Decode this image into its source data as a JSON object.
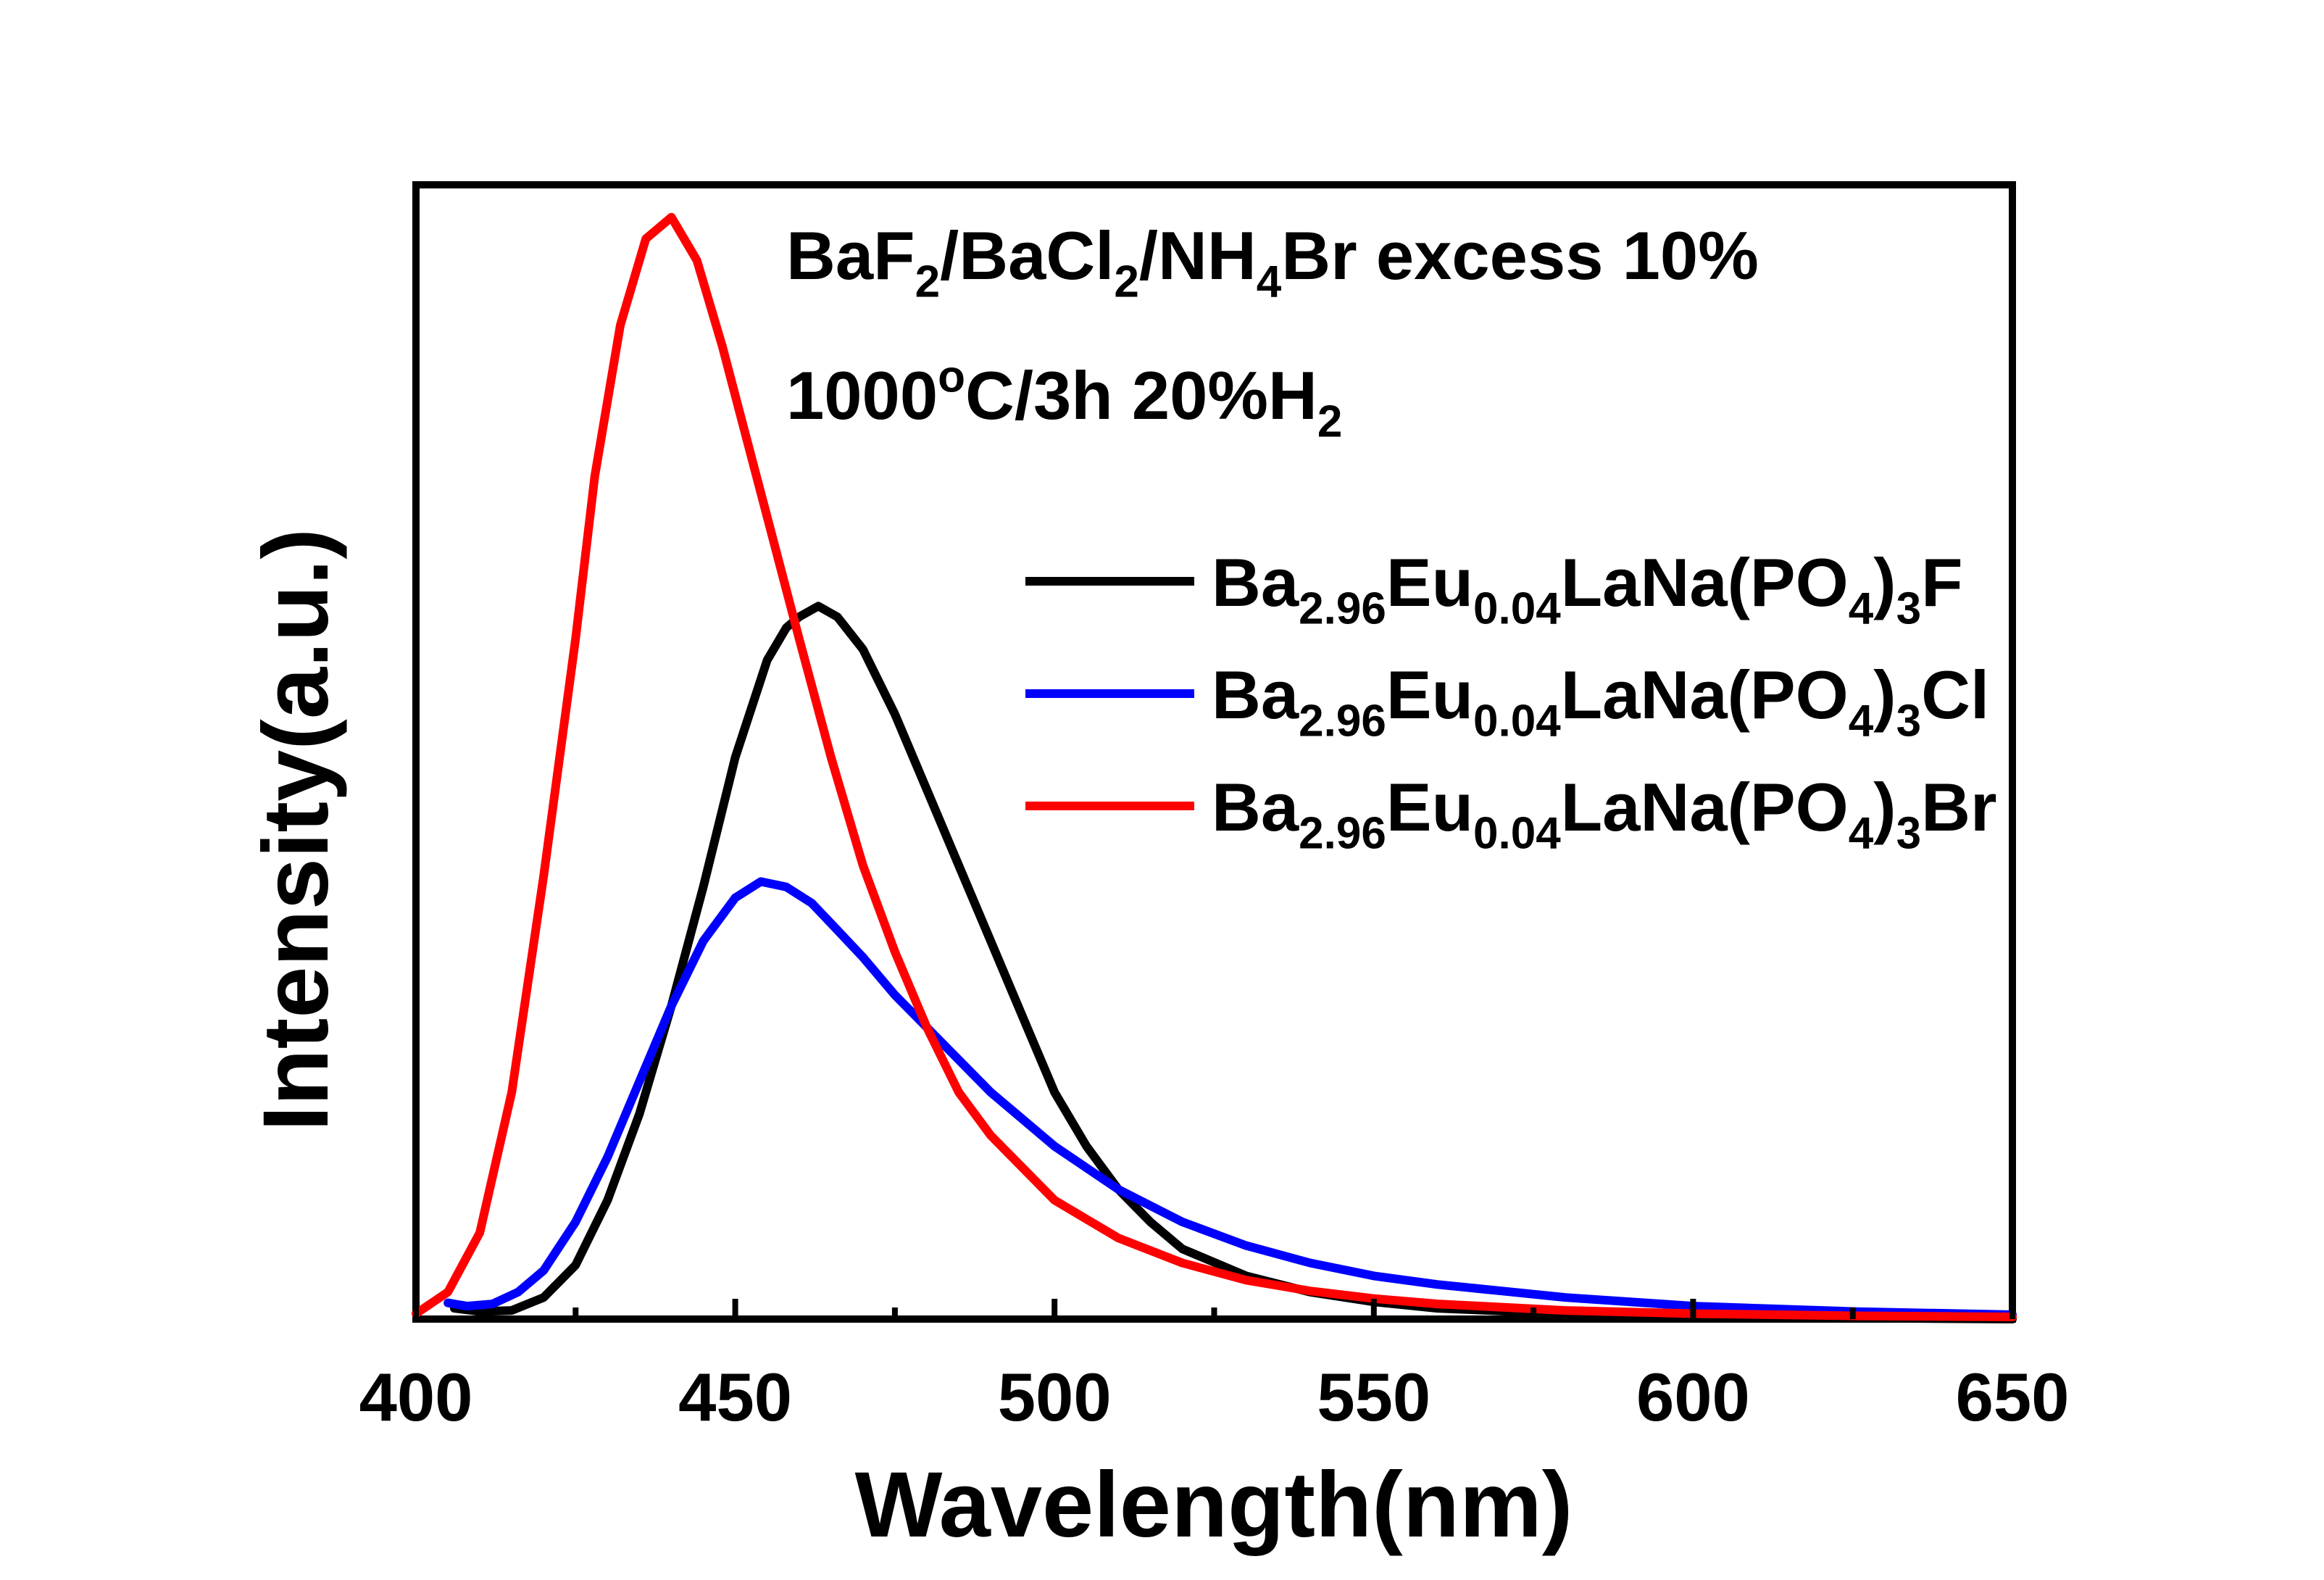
{
  "chart_data": {
    "type": "line",
    "title": "",
    "xlabel": "Wavelength(nm)",
    "ylabel": "Intensity(a.u.)",
    "xlim": [
      400,
      650
    ],
    "ylim": [
      0,
      1.05
    ],
    "x_ticks": [
      400,
      450,
      500,
      550,
      600,
      650
    ],
    "x_minor_ticks": [
      425,
      475,
      525,
      575,
      625
    ],
    "y_ticks_shown": false,
    "grid": false,
    "legend_position": "right",
    "annotations": [
      {
        "parts": [
          {
            "t": "BaF"
          },
          {
            "t": "2",
            "sub": true
          },
          {
            "t": "/BaCl"
          },
          {
            "t": "2",
            "sub": true
          },
          {
            "t": "/NH"
          },
          {
            "t": "4",
            "sub": true
          },
          {
            "t": "Br excess 10%"
          }
        ]
      },
      {
        "parts": [
          {
            "t": "1000"
          },
          {
            "t": "o",
            "sup": true
          },
          {
            "t": "C/3h  20%H"
          },
          {
            "t": "2",
            "sub": true
          }
        ]
      }
    ],
    "series": [
      {
        "name": "Ba2.96Eu0.04LaNa(PO4)3F",
        "legend_parts": [
          {
            "t": "Ba"
          },
          {
            "t": "2.96",
            "sub": true
          },
          {
            "t": "Eu"
          },
          {
            "t": "0.04",
            "sub": true
          },
          {
            "t": "LaNa(PO"
          },
          {
            "t": "4",
            "sub": true
          },
          {
            "t": ")"
          },
          {
            "t": "3",
            "sub": true
          },
          {
            "t": "F"
          }
        ],
        "color": "#000000",
        "x": [
          406,
          410,
          415,
          420,
          425,
          430,
          435,
          440,
          445,
          450,
          455,
          458,
          460,
          463,
          466,
          470,
          475,
          480,
          485,
          490,
          495,
          500,
          505,
          510,
          515,
          520,
          530,
          540,
          550,
          560,
          580,
          600,
          625,
          650
        ],
        "y": [
          0.01,
          0.007,
          0.008,
          0.02,
          0.05,
          0.11,
          0.19,
          0.29,
          0.4,
          0.52,
          0.61,
          0.64,
          0.65,
          0.66,
          0.65,
          0.62,
          0.56,
          0.49,
          0.42,
          0.35,
          0.28,
          0.21,
          0.16,
          0.12,
          0.09,
          0.065,
          0.04,
          0.025,
          0.016,
          0.01,
          0.005,
          0.003,
          0.001,
          0.0
        ]
      },
      {
        "name": "Ba2.96Eu0.04LaNa(PO4)3Cl",
        "legend_parts": [
          {
            "t": "Ba"
          },
          {
            "t": "2.96",
            "sub": true
          },
          {
            "t": "Eu"
          },
          {
            "t": "0.04",
            "sub": true
          },
          {
            "t": "LaNa(PO"
          },
          {
            "t": "4",
            "sub": true
          },
          {
            "t": ")"
          },
          {
            "t": "3",
            "sub": true
          },
          {
            "t": "Cl"
          }
        ],
        "color": "#0000ff",
        "x": [
          405,
          408,
          412,
          416,
          420,
          425,
          430,
          435,
          440,
          445,
          450,
          454,
          458,
          462,
          466,
          470,
          475,
          480,
          490,
          500,
          510,
          520,
          530,
          540,
          550,
          560,
          570,
          580,
          600,
          625,
          650
        ],
        "y": [
          0.015,
          0.012,
          0.014,
          0.025,
          0.045,
          0.09,
          0.15,
          0.22,
          0.29,
          0.35,
          0.39,
          0.405,
          0.4,
          0.385,
          0.36,
          0.335,
          0.3,
          0.27,
          0.21,
          0.16,
          0.12,
          0.09,
          0.068,
          0.052,
          0.04,
          0.032,
          0.026,
          0.02,
          0.012,
          0.007,
          0.004
        ]
      },
      {
        "name": "Ba2.96Eu0.04LaNa(PO4)3Br",
        "legend_parts": [
          {
            "t": "Ba"
          },
          {
            "t": "2.96",
            "sub": true
          },
          {
            "t": "Eu"
          },
          {
            "t": "0.04",
            "sub": true
          },
          {
            "t": "LaNa(PO"
          },
          {
            "t": "4",
            "sub": true
          },
          {
            "t": ")"
          },
          {
            "t": "3",
            "sub": true
          },
          {
            "t": "Br"
          }
        ],
        "color": "#ff0000",
        "x": [
          400,
          405,
          410,
          415,
          420,
          425,
          428,
          432,
          436,
          440,
          444,
          448,
          452,
          456,
          460,
          465,
          470,
          475,
          480,
          485,
          490,
          500,
          510,
          520,
          530,
          540,
          550,
          560,
          580,
          600,
          625,
          650
        ],
        "y": [
          0.005,
          0.025,
          0.08,
          0.21,
          0.41,
          0.63,
          0.78,
          0.92,
          1.0,
          1.02,
          0.98,
          0.9,
          0.81,
          0.72,
          0.63,
          0.52,
          0.42,
          0.34,
          0.27,
          0.21,
          0.17,
          0.11,
          0.075,
          0.052,
          0.036,
          0.026,
          0.019,
          0.014,
          0.008,
          0.005,
          0.003,
          0.002
        ]
      }
    ]
  }
}
